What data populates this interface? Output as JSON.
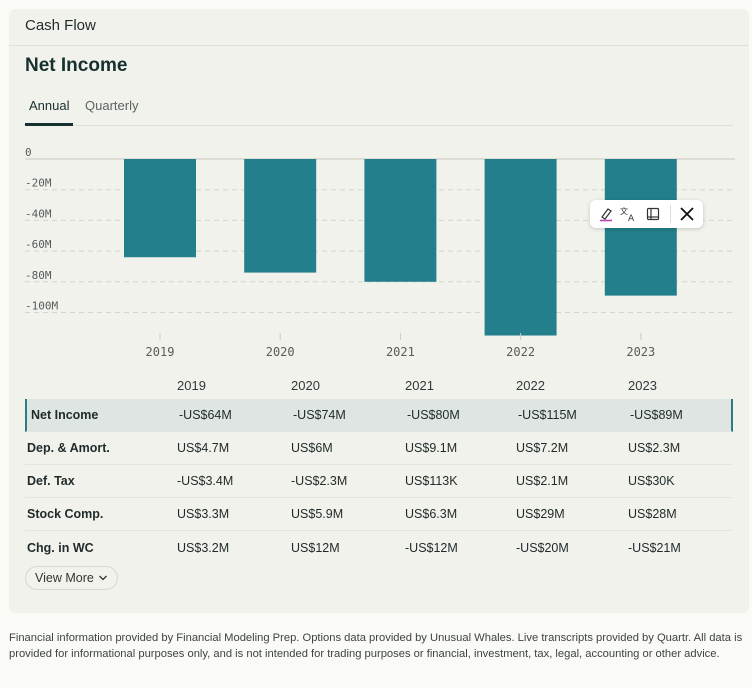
{
  "card": {
    "header": "Cash Flow",
    "title": "Net Income"
  },
  "tabs": [
    {
      "label": "Annual",
      "active": true
    },
    {
      "label": "Quarterly",
      "active": false
    }
  ],
  "chart_data": {
    "type": "bar",
    "categories": [
      "2019",
      "2020",
      "2021",
      "2022",
      "2023"
    ],
    "values": [
      -64,
      -74,
      -80,
      -115,
      -89
    ],
    "unit": "M",
    "ylim": [
      -115,
      0
    ],
    "yticks": [
      0,
      -20,
      -40,
      -60,
      -80,
      -100
    ],
    "ytick_labels": [
      "0",
      "-20M",
      "-40M",
      "-60M",
      "-80M",
      "-100M"
    ],
    "bar_color": "#237f8b",
    "grid": true
  },
  "toolbar": {
    "icons": [
      "highlighter-icon",
      "translate-icon",
      "book-icon",
      "x-logo-icon"
    ]
  },
  "table": {
    "headers": [
      "",
      "2019",
      "2020",
      "2021",
      "2022",
      "2023"
    ],
    "rows": [
      {
        "label": "Net Income",
        "values": [
          "-US$64M",
          "-US$74M",
          "-US$80M",
          "-US$115M",
          "-US$89M"
        ],
        "highlight": true
      },
      {
        "label": "Dep. & Amort.",
        "values": [
          "US$4.7M",
          "US$6M",
          "US$9.1M",
          "US$7.2M",
          "US$2.3M"
        ]
      },
      {
        "label": "Def. Tax",
        "values": [
          "-US$3.4M",
          "-US$2.3M",
          "US$113K",
          "US$2.1M",
          "US$30K"
        ]
      },
      {
        "label": "Stock Comp.",
        "values": [
          "US$3.3M",
          "US$5.9M",
          "US$6.3M",
          "US$29M",
          "US$28M"
        ]
      },
      {
        "label": "Chg. in WC",
        "values": [
          "US$3.2M",
          "US$12M",
          "-US$12M",
          "-US$20M",
          "-US$21M"
        ]
      }
    ]
  },
  "view_more": {
    "label": "View More"
  },
  "disclaimer": "Financial information provided by Financial Modeling Prep. Options data provided by Unusual Whales. Live transcripts provided by Quartr. All data is provided for informational purposes only, and is not intended for trading purposes or financial, investment, tax, legal, accounting or other advice."
}
